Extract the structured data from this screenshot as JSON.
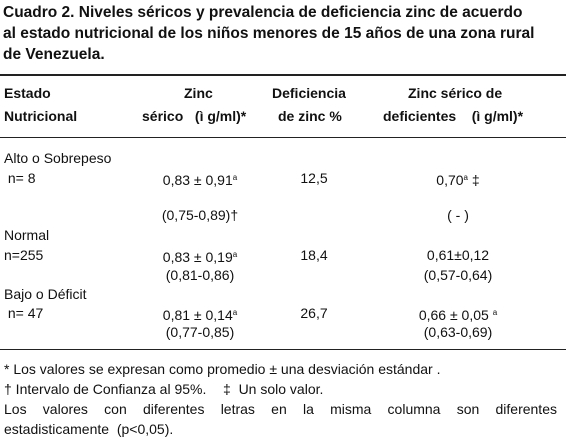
{
  "title": [
    "Cuadro 2. Niveles séricos y prevalencia de deficiencia zinc de acuerdo",
    "al estado nutricional de los niños menores de 15 años de una zona rural",
    "de Venezuela."
  ],
  "table": {
    "header": [
      [
        "Estado",
        "Nutricional"
      ],
      [
        "Zinc",
        "sérico   (ì g/ml)*"
      ],
      [
        "Deficiencia",
        "de zinc %"
      ],
      [
        "Zinc sérico de",
        "deficientes    (ì g/ml)*"
      ]
    ],
    "rows": [
      {
        "label": "Alto o Sobrepeso"
      },
      {
        "label": " n= 8",
        "zinc": "0,83 ± 0,91",
        "zinc_sup": "a",
        "deficiencia": "12,5",
        "zinc_def": "0,70",
        "zinc_def_sup": "a",
        "zinc_def_after": " ‡"
      },
      {
        "zinc": "(0,75-0,89)†",
        "zinc_def": "( - )"
      },
      {
        "label": "Normal"
      },
      {
        "label": "n=255",
        "zinc": "0,83 ± 0,19",
        "zinc_sup": "a",
        "deficiencia": "18,4",
        "zinc_def": "0,61±0,12"
      },
      {
        "zinc": "(0,81-0,86)",
        "zinc_def": "(0,57-0,64)"
      },
      {
        "label": "Bajo o Déficit"
      },
      {
        "label": " n= 47",
        "zinc": "0,81 ± 0,14",
        "zinc_sup": "a",
        "deficiencia": "26,7",
        "zinc_def": "0,66 ± 0,05 ",
        "zinc_def_sup": "a"
      },
      {
        "zinc": "(0,77-0,85)",
        "zinc_def": "(0,63-0,69)"
      }
    ]
  },
  "footnotes": [
    "* Los valores se expresan como promedio ± una desviación estándar .",
    "† Intervalo de Confianza al 95%.",
    "‡  Un solo valor.",
    "Los valores con diferentes letras en la misma columna son diferentes",
    "estadisticamente  (p<0,05)."
  ]
}
